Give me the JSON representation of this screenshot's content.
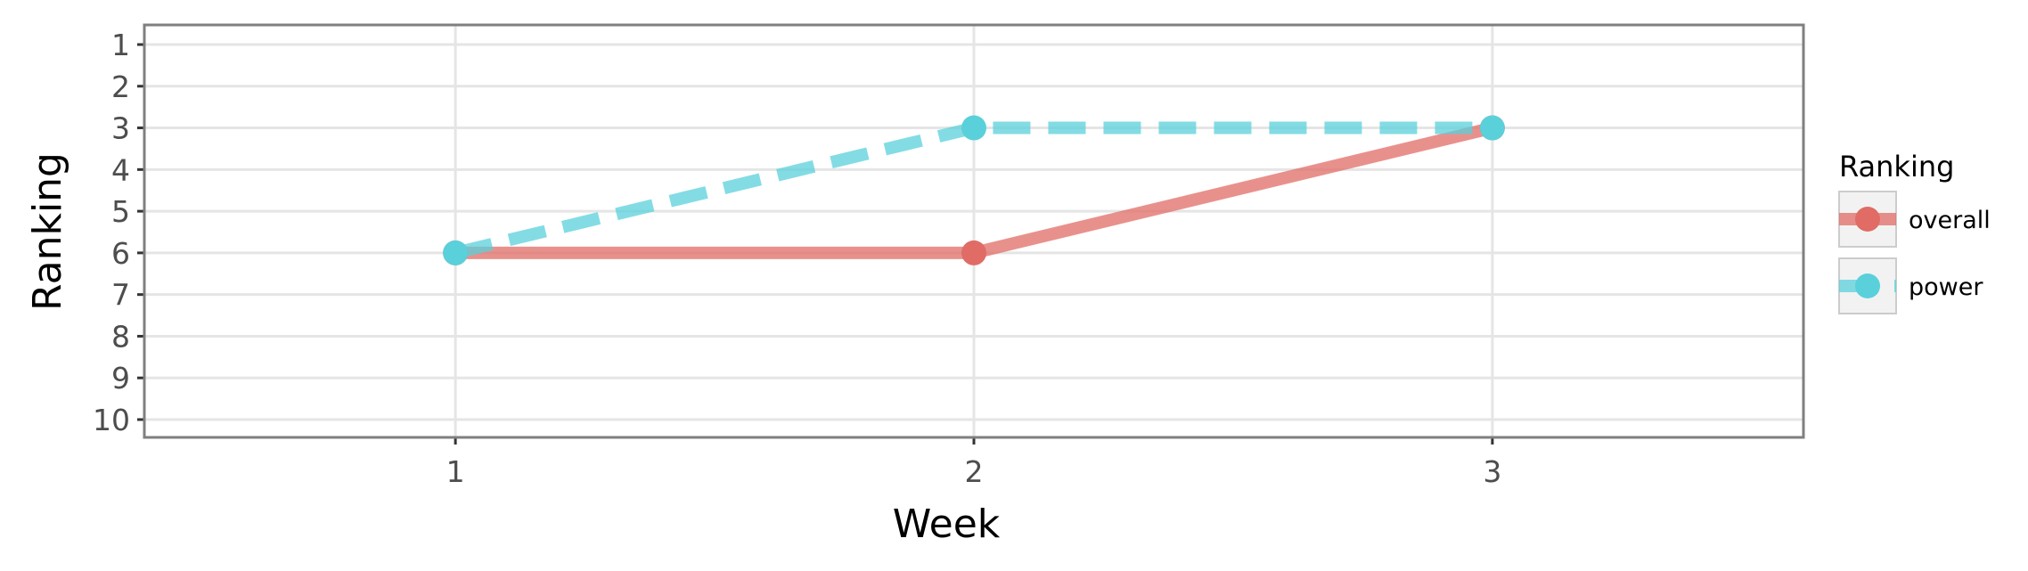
{
  "chart_data": {
    "type": "line",
    "title": "",
    "xlabel": "Week",
    "ylabel": "Ranking",
    "x": [
      1,
      2,
      3
    ],
    "x_ticks": [
      "1",
      "2",
      "3"
    ],
    "xlim": [
      0.4,
      3.6
    ],
    "y_ticks": [
      "1",
      "2",
      "3",
      "4",
      "5",
      "6",
      "7",
      "8",
      "9",
      "10"
    ],
    "ylim": [
      1,
      10
    ],
    "y_reversed": true,
    "grid": true,
    "legend": {
      "title": "Ranking",
      "placement": "right"
    },
    "series": [
      {
        "name": "overall",
        "values": [
          6,
          6,
          3
        ],
        "color": "#e06c65",
        "line_style": "solid"
      },
      {
        "name": "power",
        "values": [
          6,
          3,
          3
        ],
        "color": "#5ad0db",
        "line_style": "dashed"
      }
    ]
  }
}
